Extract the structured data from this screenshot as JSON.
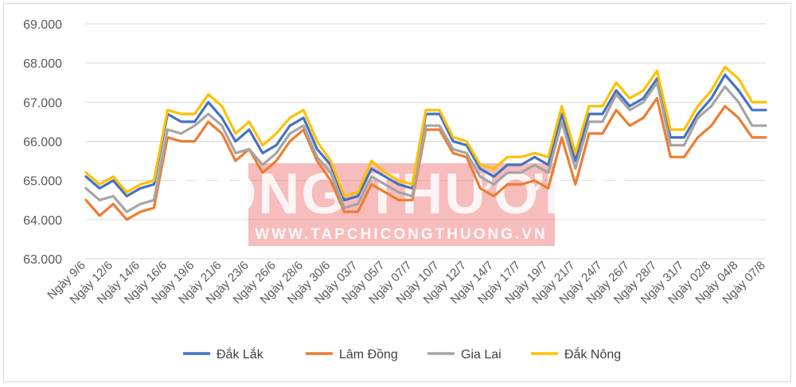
{
  "watermark": {
    "title": "CÔNG THƯƠNG",
    "url": "WWW.TAPCHICONGTHUONG.VN"
  },
  "chart_data": {
    "type": "line",
    "title": "",
    "xlabel": "",
    "ylabel": "",
    "ylim": [
      63000,
      69000
    ],
    "yticks": [
      63000,
      64000,
      65000,
      66000,
      67000,
      68000,
      69000
    ],
    "ytick_labels": [
      "63.000",
      "64.000",
      "65.000",
      "66.000",
      "67.000",
      "68.000",
      "69.000"
    ],
    "grid": true,
    "legend_position": "bottom",
    "categories": [
      "Ngày 9/6",
      "",
      "Ngày 12/6",
      "",
      "Ngày 14/6",
      "",
      "Ngày 16/6",
      "",
      "Ngày 19/6",
      "",
      "Ngày 21/6",
      "",
      "Ngày 23/6",
      "",
      "Ngày 26/6",
      "",
      "Ngày 28/6",
      "",
      "Ngày 30/6",
      "",
      "Ngày 03/7",
      "",
      "Ngày 05/7",
      "",
      "Ngày 07/7",
      "",
      "Ngày 10/7",
      "",
      "Ngày 12/7",
      "",
      "Ngày 14/7",
      "",
      "Ngày 17/7",
      "",
      "Ngày 19/7",
      "",
      "Ngày 21/7",
      "",
      "Ngày 24/7",
      "",
      "Ngày 26/7",
      "",
      "Ngày 28/7",
      "",
      "Ngày 31/7",
      "",
      "Ngày 02/8",
      "",
      "Ngày 04/8",
      "",
      "Ngày 07/8"
    ],
    "series": [
      {
        "name": "Đắk Lắk",
        "color": "#4472C4",
        "values": [
          65100,
          64800,
          65000,
          64600,
          64800,
          64900,
          66700,
          66500,
          66500,
          67000,
          66600,
          66000,
          66300,
          65700,
          65900,
          66400,
          66600,
          65800,
          65400,
          64500,
          64600,
          65300,
          65100,
          64900,
          64800,
          66700,
          66700,
          66000,
          65900,
          65300,
          65100,
          65400,
          65400,
          65600,
          65400,
          66700,
          65500,
          66700,
          66700,
          67300,
          66900,
          67100,
          67600,
          66100,
          66100,
          66700,
          67100,
          67700,
          67300,
          66800,
          66800
        ]
      },
      {
        "name": "Lâm Đồng",
        "color": "#ED7D31",
        "values": [
          64500,
          64100,
          64400,
          64000,
          64200,
          64300,
          66100,
          66000,
          66000,
          66500,
          66200,
          65500,
          65800,
          65200,
          65500,
          66000,
          66300,
          65500,
          65000,
          64200,
          64200,
          64900,
          64700,
          64500,
          64500,
          66300,
          66300,
          65700,
          65600,
          64800,
          64600,
          64900,
          64900,
          65000,
          64800,
          66100,
          64900,
          66200,
          66200,
          66800,
          66400,
          66600,
          67100,
          65600,
          65600,
          66100,
          66400,
          66900,
          66600,
          66100,
          66100
        ]
      },
      {
        "name": "Gia Lai",
        "color": "#A5A5A5",
        "values": [
          64800,
          64500,
          64600,
          64200,
          64400,
          64500,
          66300,
          66200,
          66400,
          66700,
          66400,
          65700,
          65800,
          65400,
          65700,
          66200,
          66400,
          65600,
          65200,
          64300,
          64400,
          65100,
          64900,
          64700,
          64600,
          66400,
          66400,
          65800,
          65700,
          65100,
          64900,
          65200,
          65200,
          65400,
          65200,
          66500,
          65300,
          66500,
          66500,
          67200,
          66800,
          67000,
          67500,
          65900,
          65900,
          66600,
          66900,
          67400,
          67000,
          66400,
          66400
        ]
      },
      {
        "name": "Đắk Nông",
        "color": "#FFC000",
        "values": [
          65200,
          64900,
          65100,
          64700,
          64900,
          65000,
          66800,
          66700,
          66700,
          67200,
          66900,
          66200,
          66500,
          65900,
          66200,
          66600,
          66800,
          66000,
          65500,
          64600,
          64700,
          65500,
          65200,
          65000,
          64900,
          66800,
          66800,
          66100,
          66000,
          65400,
          65300,
          65600,
          65600,
          65700,
          65600,
          66900,
          65700,
          66900,
          66900,
          67500,
          67100,
          67300,
          67800,
          66300,
          66300,
          66900,
          67300,
          67900,
          67600,
          67000,
          67000
        ]
      }
    ]
  }
}
